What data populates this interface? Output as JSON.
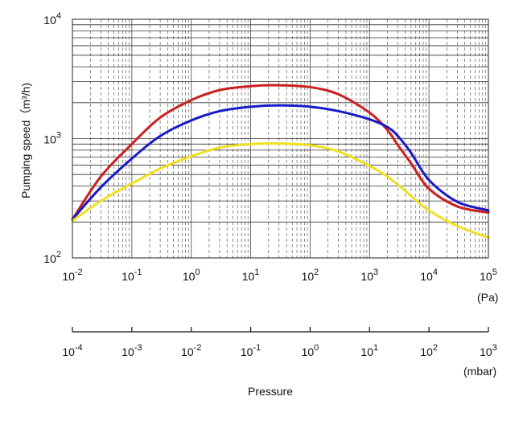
{
  "chart_data": {
    "type": "line",
    "title": "",
    "ylabel": "Pumping speed（m³/h)",
    "xlabel": "Pressure",
    "y_scale": "log",
    "x_scale": "log",
    "ylim": [
      100,
      10000
    ],
    "xlim_pa": [
      0.01,
      100000
    ],
    "xlim_mbar": [
      0.0001,
      1000
    ],
    "grid": true,
    "y_ticks": [
      {
        "base": "10",
        "exp": "2"
      },
      {
        "base": "10",
        "exp": "3"
      },
      {
        "base": "10",
        "exp": "4"
      }
    ],
    "x_ticks_pa": [
      {
        "base": "10",
        "exp": "-2"
      },
      {
        "base": "10",
        "exp": "-1"
      },
      {
        "base": "10",
        "exp": "0"
      },
      {
        "base": "10",
        "exp": "1"
      },
      {
        "base": "10",
        "exp": "2"
      },
      {
        "base": "10",
        "exp": "3"
      },
      {
        "base": "10",
        "exp": "4"
      },
      {
        "base": "10",
        "exp": "5"
      }
    ],
    "x_ticks_mbar": [
      {
        "base": "10",
        "exp": "-4"
      },
      {
        "base": "10",
        "exp": "-3"
      },
      {
        "base": "10",
        "exp": "-2"
      },
      {
        "base": "10",
        "exp": "-1"
      },
      {
        "base": "10",
        "exp": "0"
      },
      {
        "base": "10",
        "exp": "1"
      },
      {
        "base": "10",
        "exp": "2"
      },
      {
        "base": "10",
        "exp": "3"
      }
    ],
    "unit_pa": "(Pa)",
    "unit_mbar": "(mbar)",
    "x": [
      0.01,
      0.03,
      0.1,
      0.3,
      1,
      3,
      10,
      30,
      100,
      300,
      1000,
      2000,
      3000,
      5000,
      10000,
      30000,
      100000
    ],
    "series": [
      {
        "color": "#cc1f1f",
        "values": [
          210,
          480,
          900,
          1500,
          2100,
          2550,
          2750,
          2800,
          2700,
          2350,
          1650,
          1180,
          880,
          620,
          380,
          270,
          240
        ]
      },
      {
        "color": "#1a1ac8",
        "values": [
          210,
          390,
          680,
          1050,
          1420,
          1700,
          1850,
          1900,
          1850,
          1700,
          1450,
          1250,
          1050,
          760,
          450,
          295,
          250
        ]
      },
      {
        "color": "#f0e020",
        "values": [
          205,
          300,
          420,
          560,
          710,
          840,
          900,
          910,
          880,
          780,
          590,
          480,
          410,
          330,
          250,
          185,
          148
        ]
      }
    ]
  }
}
